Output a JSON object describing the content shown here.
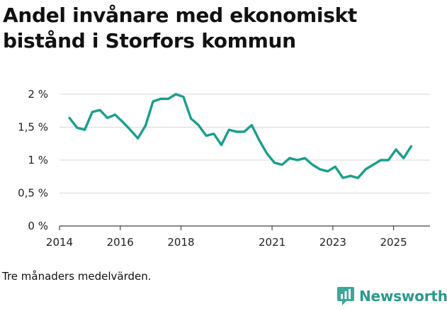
{
  "chart_data": {
    "type": "line",
    "title": "Andel invånare med ekonomiskt bistånd i Storfors kommun",
    "xlabel": "",
    "ylabel": "",
    "ylim": [
      0,
      2
    ],
    "xlim": [
      2014.0,
      2026.2
    ],
    "y_ticks": [
      {
        "value": 0,
        "label": "0 %"
      },
      {
        "value": 0.5,
        "label": "0,5 %"
      },
      {
        "value": 1,
        "label": "1 %"
      },
      {
        "value": 1.5,
        "label": "1,5 %"
      },
      {
        "value": 2,
        "label": "2 %"
      }
    ],
    "x_ticks": [
      {
        "value": 2014,
        "label": "2014"
      },
      {
        "value": 2016,
        "label": "2016"
      },
      {
        "value": 2018,
        "label": "2018"
      },
      {
        "value": 2021,
        "label": "2021"
      },
      {
        "value": 2023,
        "label": "2023"
      },
      {
        "value": 2025,
        "label": "2025"
      }
    ],
    "grid": true,
    "series": [
      {
        "name": "Andel invånare med ekonomiskt bistånd",
        "color": "#1a9e8f",
        "points": [
          [
            2014.33,
            1.64
          ],
          [
            2014.58,
            1.49
          ],
          [
            2014.83,
            1.46
          ],
          [
            2015.08,
            1.73
          ],
          [
            2015.33,
            1.76
          ],
          [
            2015.58,
            1.64
          ],
          [
            2015.83,
            1.69
          ],
          [
            2016.08,
            1.58
          ],
          [
            2016.33,
            1.46
          ],
          [
            2016.58,
            1.33
          ],
          [
            2016.83,
            1.52
          ],
          [
            2017.08,
            1.89
          ],
          [
            2017.33,
            1.93
          ],
          [
            2017.58,
            1.93
          ],
          [
            2017.83,
            2.0
          ],
          [
            2018.08,
            1.96
          ],
          [
            2018.33,
            1.63
          ],
          [
            2018.58,
            1.53
          ],
          [
            2018.83,
            1.37
          ],
          [
            2019.08,
            1.4
          ],
          [
            2019.33,
            1.23
          ],
          [
            2019.58,
            1.46
          ],
          [
            2019.83,
            1.43
          ],
          [
            2020.08,
            1.43
          ],
          [
            2020.33,
            1.53
          ],
          [
            2020.58,
            1.3
          ],
          [
            2020.83,
            1.1
          ],
          [
            2021.08,
            0.96
          ],
          [
            2021.33,
            0.93
          ],
          [
            2021.58,
            1.03
          ],
          [
            2021.83,
            1.0
          ],
          [
            2022.08,
            1.03
          ],
          [
            2022.33,
            0.93
          ],
          [
            2022.58,
            0.86
          ],
          [
            2022.83,
            0.83
          ],
          [
            2023.08,
            0.9
          ],
          [
            2023.33,
            0.73
          ],
          [
            2023.58,
            0.76
          ],
          [
            2023.83,
            0.73
          ],
          [
            2024.08,
            0.86
          ],
          [
            2024.33,
            0.93
          ],
          [
            2024.58,
            1.0
          ],
          [
            2024.83,
            1.0
          ],
          [
            2025.08,
            1.16
          ],
          [
            2025.33,
            1.03
          ],
          [
            2025.58,
            1.21
          ]
        ]
      }
    ]
  },
  "footnote": "Tre månaders medelvärden.",
  "brand": {
    "name": "Newsworthy",
    "icon": "newsworthy-logo-icon",
    "color": "#2a9a8c"
  }
}
